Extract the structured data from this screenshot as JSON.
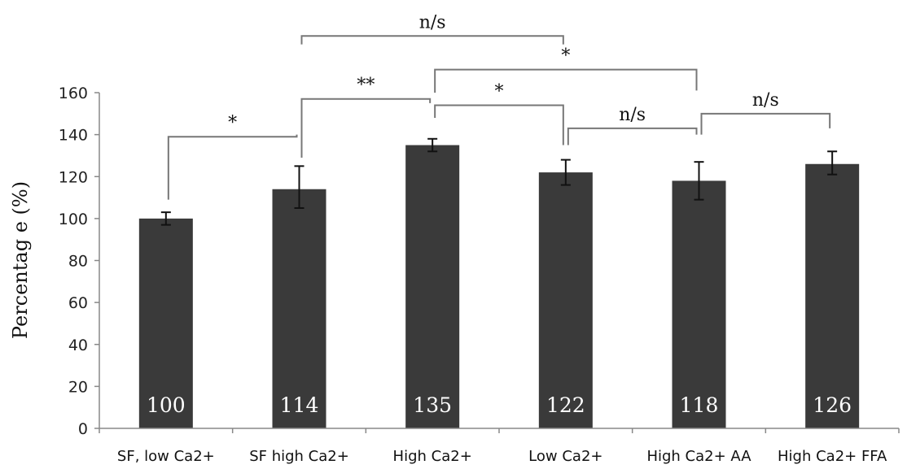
{
  "chart_data": {
    "type": "bar",
    "title": "",
    "xlabel": "",
    "ylabel": "Percentag e (%)",
    "ylim": [
      0,
      160
    ],
    "yticks": [
      0,
      20,
      40,
      60,
      80,
      100,
      120,
      140,
      160
    ],
    "grid": false,
    "categories": [
      "SF, low Ca2+",
      "SF high Ca2+",
      "High Ca2+",
      "Low Ca2+",
      "High Ca2+ AA",
      "High Ca2+ FFA"
    ],
    "values": [
      100,
      114,
      135,
      122,
      118,
      126
    ],
    "value_labels": [
      "100",
      "114",
      "135",
      "122",
      "118",
      "126"
    ],
    "error": [
      [
        97,
        103
      ],
      [
        105,
        125
      ],
      [
        132,
        138
      ],
      [
        116,
        128
      ],
      [
        109,
        127
      ],
      [
        121,
        132
      ]
    ],
    "bar_color": "#3a3a3a",
    "significance": [
      {
        "from": 0,
        "to": 1,
        "label": "*",
        "y": 139,
        "from_y": 109,
        "to_y": 140
      },
      {
        "from": 1,
        "to": 2,
        "label": "**",
        "y": 157,
        "from_y": 129,
        "to_y": 155
      },
      {
        "from": 2,
        "to": 3,
        "label": "*",
        "y": 154,
        "from_y": 148,
        "to_y": 135
      },
      {
        "from": 3,
        "to": 4,
        "label": "n/s",
        "y": 143,
        "from_y": 135,
        "to_y": 140
      },
      {
        "from": 4,
        "to": 5,
        "label": "n/s",
        "y": 150,
        "from_y": 140,
        "to_y": 143
      },
      {
        "from": 2,
        "to": 4,
        "label": "*",
        "y": 171,
        "from_y": 160,
        "to_y": 161
      },
      {
        "from": 1,
        "to": 3,
        "label": "n/s",
        "y": 187,
        "from_y": 183,
        "to_y": 183
      }
    ]
  }
}
